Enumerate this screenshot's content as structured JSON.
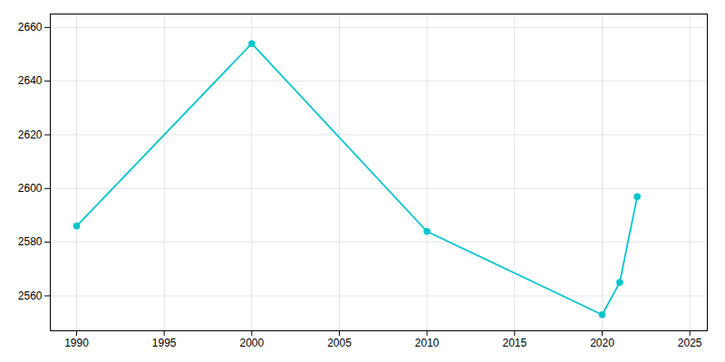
{
  "chart_data": {
    "type": "line",
    "x": [
      1990,
      2000,
      2010,
      2020,
      2021,
      2022
    ],
    "values": [
      2586,
      2654,
      2584,
      2553,
      2565,
      2597
    ],
    "color": "#00C5CD",
    "marker": "circle",
    "xlim": [
      1988.5,
      2026
    ],
    "ylim": [
      2547,
      2665
    ],
    "xticks": [
      1990,
      1995,
      2000,
      2005,
      2010,
      2015,
      2020,
      2025
    ],
    "yticks": [
      2560,
      2580,
      2600,
      2620,
      2640,
      2660
    ],
    "grid": true
  }
}
